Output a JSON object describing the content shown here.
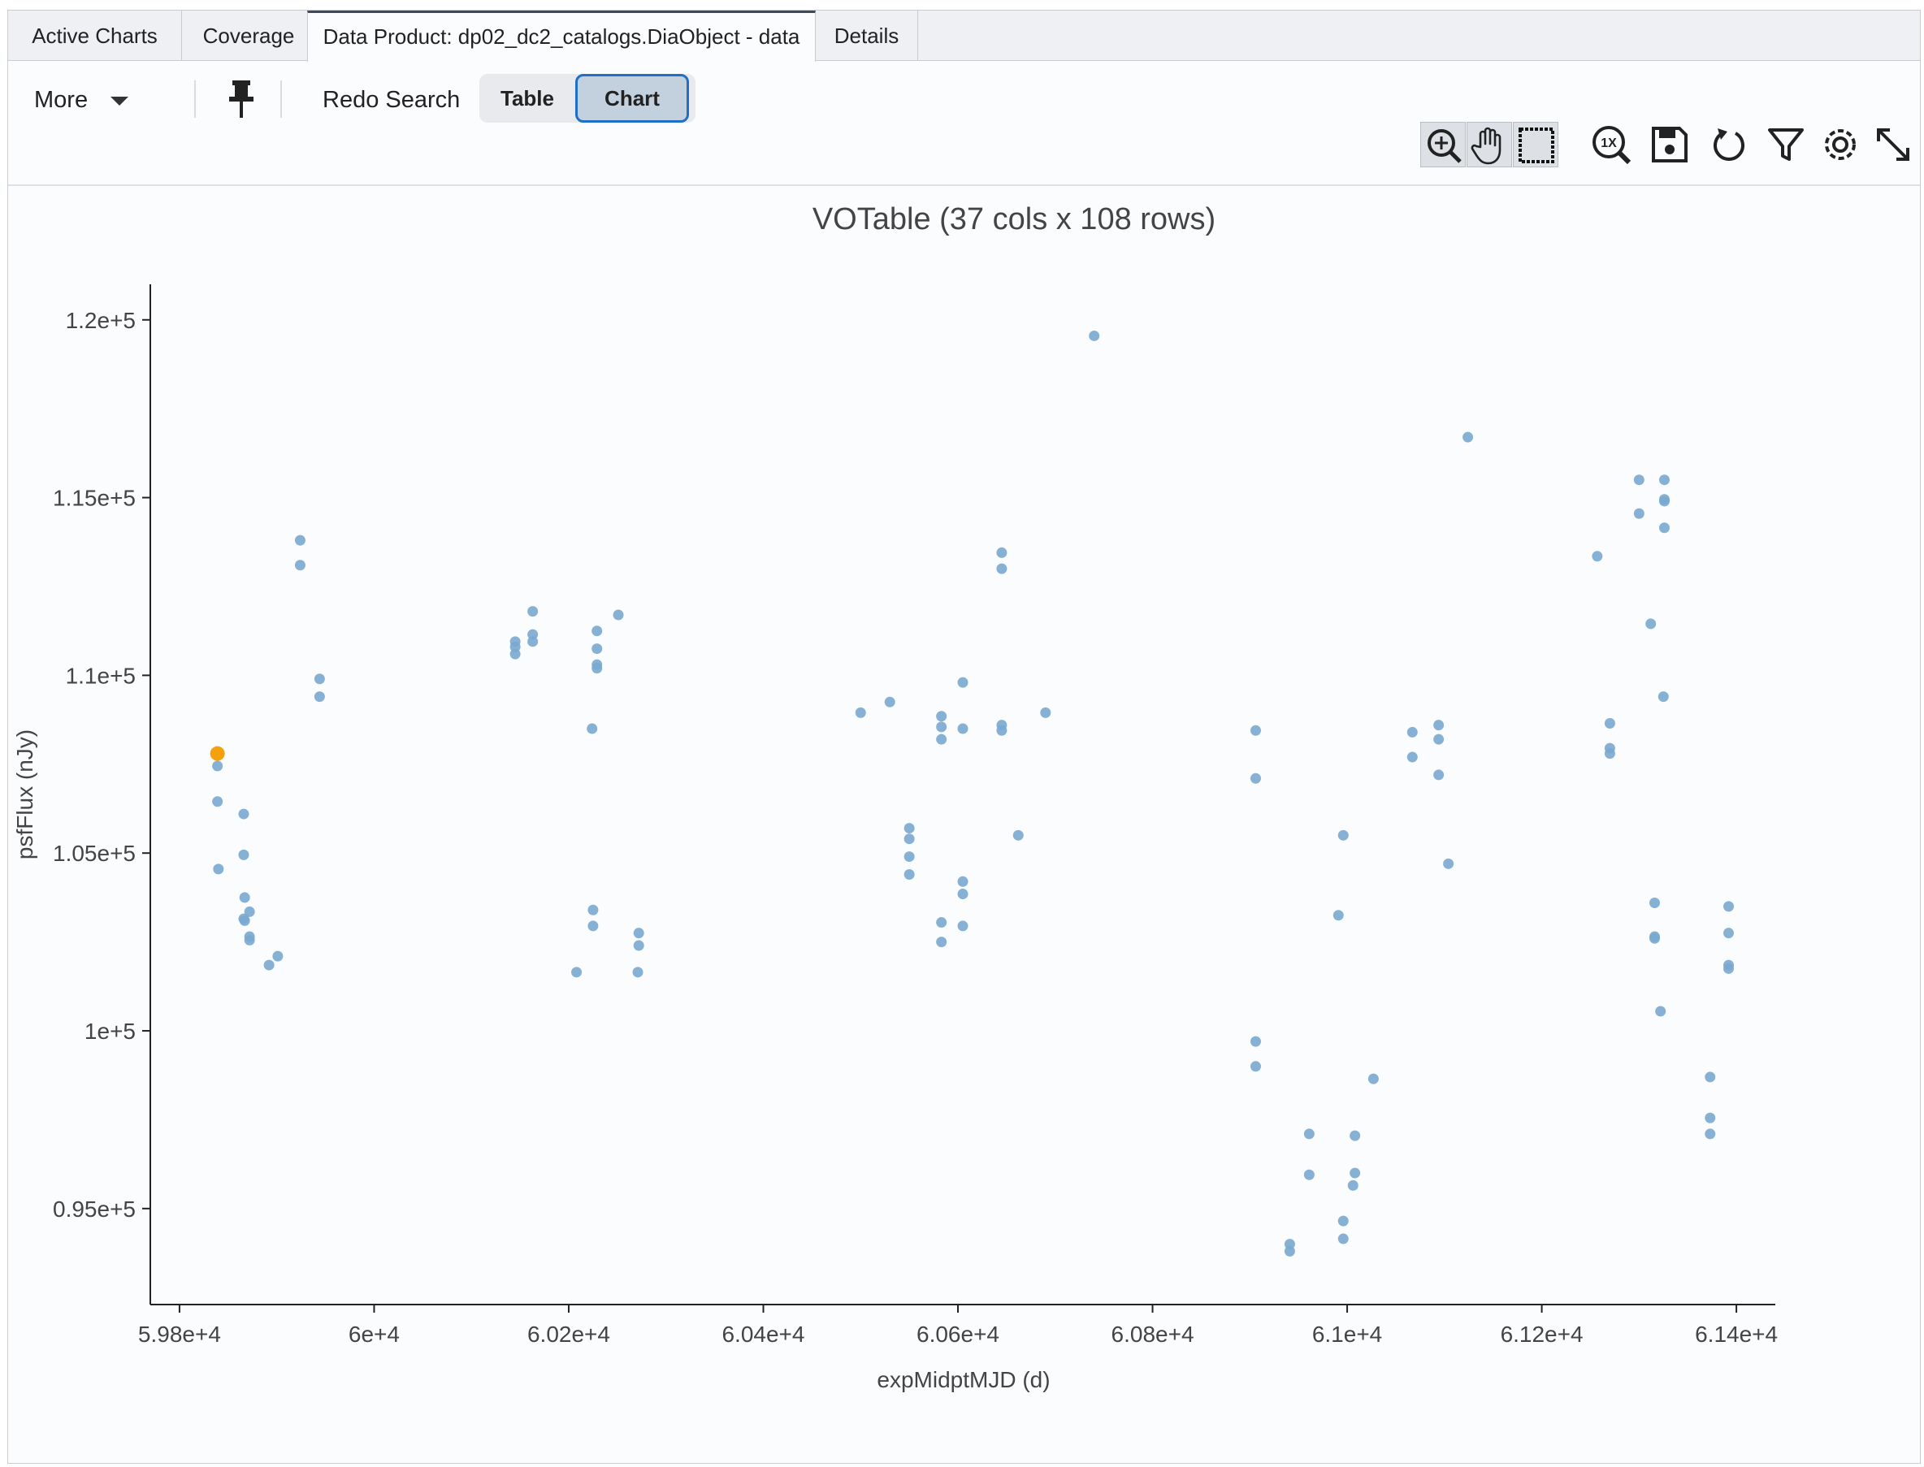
{
  "tabs": [
    "Active Charts",
    "Coverage",
    "Data Product: dp02_dc2_catalogs.DiaObject - data",
    "Details"
  ],
  "toolbar": {
    "more_label": "More",
    "redo_label": "Redo Search",
    "table_label": "Table",
    "chart_label": "Chart"
  },
  "icons": [
    "zoom-in-icon",
    "pan-hand-icon",
    "select-box-icon",
    "zoom-1x-icon",
    "save-icon",
    "restore-icon",
    "filter-icon",
    "settings-gear-icon",
    "expand-icon"
  ],
  "colors": {
    "point": "#7aa9cf",
    "highlight": "#f5a10c",
    "accent": "#1f6fc4"
  },
  "chart_data": {
    "type": "scatter",
    "title": "VOTable (37 cols x 108 rows)",
    "xlabel": "expMidptMJD (d)",
    "ylabel": "psfFlux (nJy)",
    "xlim": [
      59770,
      61440
    ],
    "ylim": [
      92300,
      121000
    ],
    "xticks": [
      59800,
      60000,
      60200,
      60400,
      60600,
      60800,
      61000,
      61200,
      61400
    ],
    "xtick_labels": [
      "5.98e+4",
      "6e+4",
      "6.02e+4",
      "6.04e+4",
      "6.06e+4",
      "6.08e+4",
      "6.1e+4",
      "6.12e+4",
      "6.14e+4"
    ],
    "yticks": [
      95000,
      100000,
      105000,
      110000,
      115000,
      120000
    ],
    "ytick_labels": [
      "0.95e+5",
      "1e+5",
      "1.05e+5",
      "1.1e+5",
      "1.15e+5",
      "1.2e+5"
    ],
    "highlight": {
      "x": 59839,
      "y": 107800
    },
    "points": [
      [
        59839,
        107450
      ],
      [
        59839,
        106450
      ],
      [
        59840,
        104550
      ],
      [
        59866,
        106100
      ],
      [
        59866,
        104950
      ],
      [
        59867,
        103750
      ],
      [
        59866,
        103150
      ],
      [
        59867,
        103100
      ],
      [
        59872,
        103350
      ],
      [
        59872,
        102650
      ],
      [
        59872,
        102550
      ],
      [
        59892,
        101850
      ],
      [
        59901,
        102100
      ],
      [
        59924,
        113800
      ],
      [
        59924,
        113100
      ],
      [
        59944,
        109900
      ],
      [
        59944,
        109400
      ],
      [
        60145,
        110950
      ],
      [
        60145,
        110800
      ],
      [
        60145,
        110600
      ],
      [
        60163,
        111800
      ],
      [
        60163,
        111150
      ],
      [
        60163,
        110950
      ],
      [
        60224,
        108500
      ],
      [
        60225,
        103400
      ],
      [
        60225,
        102950
      ],
      [
        60229,
        111250
      ],
      [
        60229,
        110750
      ],
      [
        60229,
        110300
      ],
      [
        60229,
        110200
      ],
      [
        60251,
        111700
      ],
      [
        60271,
        101650
      ],
      [
        60272,
        102400
      ],
      [
        60272,
        102750
      ],
      [
        60208,
        101650
      ],
      [
        60500,
        108950
      ],
      [
        60530,
        109250
      ],
      [
        60550,
        105700
      ],
      [
        60550,
        105400
      ],
      [
        60550,
        104900
      ],
      [
        60550,
        104400
      ],
      [
        60583,
        108850
      ],
      [
        60583,
        108550
      ],
      [
        60583,
        108200
      ],
      [
        60583,
        103050
      ],
      [
        60583,
        102500
      ],
      [
        60605,
        109800
      ],
      [
        60605,
        108500
      ],
      [
        60605,
        104200
      ],
      [
        60605,
        103850
      ],
      [
        60605,
        102950
      ],
      [
        60645,
        113450
      ],
      [
        60645,
        113000
      ],
      [
        60645,
        108600
      ],
      [
        60645,
        108450
      ],
      [
        60662,
        105500
      ],
      [
        60690,
        108950
      ],
      [
        60740,
        119550
      ],
      [
        60906,
        108450
      ],
      [
        60906,
        107100
      ],
      [
        60906,
        99700
      ],
      [
        60906,
        99000
      ],
      [
        60941,
        94000
      ],
      [
        60941,
        93800
      ],
      [
        60961,
        97100
      ],
      [
        60961,
        95950
      ],
      [
        60991,
        103250
      ],
      [
        60996,
        105500
      ],
      [
        60996,
        94650
      ],
      [
        60996,
        94150
      ],
      [
        61008,
        97050
      ],
      [
        61008,
        96000
      ],
      [
        61006,
        95650
      ],
      [
        61027,
        98650
      ],
      [
        61067,
        108400
      ],
      [
        61067,
        107700
      ],
      [
        61094,
        108600
      ],
      [
        61094,
        108200
      ],
      [
        61094,
        107200
      ],
      [
        61104,
        104700
      ],
      [
        61124,
        116700
      ],
      [
        61257,
        113350
      ],
      [
        61270,
        108650
      ],
      [
        61270,
        107950
      ],
      [
        61270,
        107800
      ],
      [
        61300,
        115500
      ],
      [
        61300,
        114550
      ],
      [
        61312,
        111450
      ],
      [
        61326,
        115500
      ],
      [
        61326,
        114950
      ],
      [
        61326,
        114900
      ],
      [
        61326,
        114150
      ],
      [
        61325,
        109400
      ],
      [
        61316,
        103600
      ],
      [
        61316,
        102650
      ],
      [
        61316,
        102600
      ],
      [
        61322,
        100550
      ],
      [
        61373,
        98700
      ],
      [
        61373,
        97550
      ],
      [
        61373,
        97100
      ],
      [
        61392,
        103500
      ],
      [
        61392,
        102750
      ],
      [
        61392,
        101850
      ],
      [
        61392,
        101750
      ]
    ]
  }
}
